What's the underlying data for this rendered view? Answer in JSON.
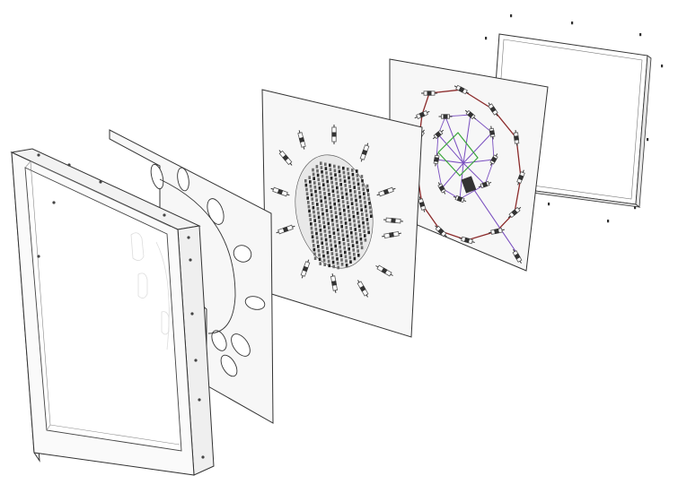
{
  "figure": {
    "kind": "exploded-assembly",
    "layers": [
      {
        "id": "front-frame",
        "type": "frame"
      },
      {
        "id": "spacer-panel",
        "type": "panel-with-slots",
        "slot_count": 10
      },
      {
        "id": "led-matrix-board",
        "type": "pcb",
        "outer_component_count": 13
      },
      {
        "id": "wiring-board",
        "type": "pcb",
        "node_count": 15
      },
      {
        "id": "back-panel",
        "type": "panel"
      }
    ]
  },
  "colors": {
    "background": "#ffffff",
    "outline": "#333333",
    "panel_fill": "#f7f7f7",
    "frame_fill": "#f4f4f4",
    "component": "#555555",
    "wire_ring": "#8b2a2a",
    "wire_spoke": "#7a4fc0",
    "wire_green": "#3aa63a"
  }
}
